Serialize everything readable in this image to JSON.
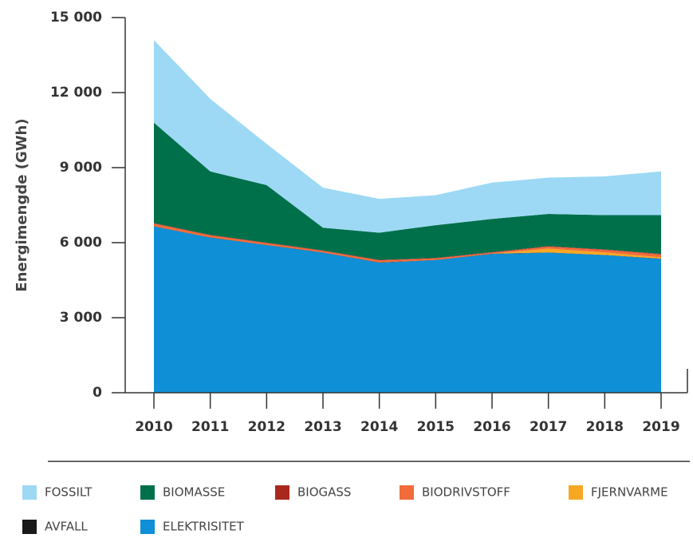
{
  "chart_data": {
    "type": "stacked_area",
    "y_label": "Energimengde (GWh)",
    "categories": [
      "2010",
      "2011",
      "2012",
      "2013",
      "2014",
      "2015",
      "2016",
      "2017",
      "2018",
      "2019"
    ],
    "ylim": [
      0,
      15000
    ],
    "yticks": [
      0,
      {
        "value": 3000,
        "label": "3 000"
      },
      {
        "value": 6000,
        "label": "6 000"
      },
      {
        "value": 9000,
        "label": "9 000"
      },
      {
        "value": 12000,
        "label": "12 000"
      },
      {
        "value": 15000,
        "label": "15 000"
      }
    ],
    "series": [
      {
        "name": "FOSSILT",
        "color": "#9dd9f5",
        "values": [
          3300,
          2900,
          1650,
          1600,
          1350,
          1200,
          1450,
          1450,
          1550,
          1750
        ]
      },
      {
        "name": "BIOMASSE",
        "color": "#00704a",
        "values": [
          4020,
          2540,
          2300,
          910,
          1090,
          1310,
          1330,
          1290,
          1370,
          1550
        ]
      },
      {
        "name": "BIOGASS",
        "color": "#a8281e",
        "values": [
          20,
          20,
          20,
          20,
          20,
          20,
          20,
          20,
          20,
          20
        ]
      },
      {
        "name": "BIODRIVSTOFF",
        "color": "#f26b3a",
        "values": [
          100,
          80,
          70,
          60,
          80,
          60,
          40,
          80,
          100,
          120
        ]
      },
      {
        "name": "FJERNVARME",
        "color": "#f7a823",
        "values": [
          0,
          0,
          0,
          0,
          0,
          0,
          0,
          150,
          100,
          50
        ]
      },
      {
        "name": "AVFALL",
        "color": "#1a1a1a",
        "values": [
          10,
          10,
          10,
          10,
          10,
          10,
          10,
          10,
          10,
          10
        ]
      },
      {
        "name": "ELEKTRISITET",
        "color": "#0f8fd6",
        "values": [
          6650,
          6200,
          5900,
          5600,
          5200,
          5300,
          5550,
          5600,
          5500,
          5350
        ]
      }
    ]
  }
}
